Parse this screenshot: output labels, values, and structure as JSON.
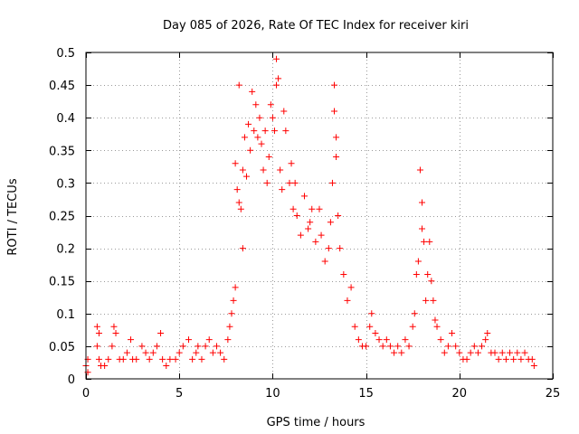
{
  "chart_data": {
    "type": "scatter",
    "title": "Day 085 of 2026, Rate Of TEC Index for receiver kiri",
    "xlabel": "GPS time / hours",
    "ylabel": "ROTI / TECUs",
    "xlim": [
      0,
      25
    ],
    "ylim": [
      0,
      0.5
    ],
    "xticks": [
      "0",
      "5",
      "10",
      "15",
      "20",
      "25"
    ],
    "yticks": [
      "0",
      "0.05",
      "0.1",
      "0.15",
      "0.2",
      "0.25",
      "0.3",
      "0.35",
      "0.4",
      "0.45",
      "0.5"
    ],
    "grid": true,
    "marker": "+",
    "marker_color": "#ff0000",
    "series": [
      {
        "points": [
          [
            0.0,
            0.02
          ],
          [
            0.1,
            0.03
          ],
          [
            0.1,
            0.01
          ],
          [
            0.6,
            0.08
          ],
          [
            0.6,
            0.05
          ],
          [
            0.7,
            0.07
          ],
          [
            0.7,
            0.03
          ],
          [
            0.8,
            0.02
          ],
          [
            1.0,
            0.02
          ],
          [
            1.2,
            0.03
          ],
          [
            1.4,
            0.05
          ],
          [
            1.5,
            0.08
          ],
          [
            1.6,
            0.07
          ],
          [
            1.8,
            0.03
          ],
          [
            2.0,
            0.03
          ],
          [
            2.2,
            0.04
          ],
          [
            2.4,
            0.06
          ],
          [
            2.5,
            0.03
          ],
          [
            2.7,
            0.03
          ],
          [
            3.0,
            0.05
          ],
          [
            3.2,
            0.04
          ],
          [
            3.4,
            0.03
          ],
          [
            3.6,
            0.04
          ],
          [
            3.8,
            0.05
          ],
          [
            4.0,
            0.07
          ],
          [
            4.1,
            0.03
          ],
          [
            4.3,
            0.02
          ],
          [
            4.5,
            0.03
          ],
          [
            4.8,
            0.03
          ],
          [
            5.0,
            0.04
          ],
          [
            5.2,
            0.05
          ],
          [
            5.5,
            0.06
          ],
          [
            5.7,
            0.03
          ],
          [
            5.9,
            0.04
          ],
          [
            6.0,
            0.05
          ],
          [
            6.2,
            0.03
          ],
          [
            6.4,
            0.05
          ],
          [
            6.6,
            0.06
          ],
          [
            6.8,
            0.04
          ],
          [
            7.0,
            0.05
          ],
          [
            7.2,
            0.04
          ],
          [
            7.4,
            0.03
          ],
          [
            7.6,
            0.06
          ],
          [
            7.7,
            0.08
          ],
          [
            7.8,
            0.1
          ],
          [
            7.9,
            0.12
          ],
          [
            8.0,
            0.14
          ],
          [
            8.0,
            0.33
          ],
          [
            8.1,
            0.29
          ],
          [
            8.2,
            0.45
          ],
          [
            8.2,
            0.27
          ],
          [
            8.3,
            0.26
          ],
          [
            8.4,
            0.2
          ],
          [
            8.4,
            0.32
          ],
          [
            8.5,
            0.37
          ],
          [
            8.6,
            0.31
          ],
          [
            8.7,
            0.39
          ],
          [
            8.8,
            0.35
          ],
          [
            8.9,
            0.44
          ],
          [
            9.0,
            0.38
          ],
          [
            9.1,
            0.42
          ],
          [
            9.2,
            0.37
          ],
          [
            9.3,
            0.4
          ],
          [
            9.4,
            0.36
          ],
          [
            9.5,
            0.32
          ],
          [
            9.6,
            0.38
          ],
          [
            9.7,
            0.3
          ],
          [
            9.8,
            0.34
          ],
          [
            9.9,
            0.42
          ],
          [
            10.0,
            0.4
          ],
          [
            10.1,
            0.38
          ],
          [
            10.2,
            0.45
          ],
          [
            10.2,
            0.49
          ],
          [
            10.3,
            0.46
          ],
          [
            10.4,
            0.32
          ],
          [
            10.5,
            0.29
          ],
          [
            10.6,
            0.41
          ],
          [
            10.7,
            0.38
          ],
          [
            10.9,
            0.3
          ],
          [
            11.0,
            0.33
          ],
          [
            11.1,
            0.26
          ],
          [
            11.2,
            0.3
          ],
          [
            11.3,
            0.25
          ],
          [
            11.5,
            0.22
          ],
          [
            11.7,
            0.28
          ],
          [
            11.9,
            0.23
          ],
          [
            12.0,
            0.24
          ],
          [
            12.1,
            0.26
          ],
          [
            12.3,
            0.21
          ],
          [
            12.5,
            0.26
          ],
          [
            12.6,
            0.22
          ],
          [
            12.8,
            0.18
          ],
          [
            13.0,
            0.2
          ],
          [
            13.1,
            0.24
          ],
          [
            13.2,
            0.3
          ],
          [
            13.3,
            0.45
          ],
          [
            13.3,
            0.41
          ],
          [
            13.4,
            0.37
          ],
          [
            13.4,
            0.34
          ],
          [
            13.5,
            0.25
          ],
          [
            13.6,
            0.2
          ],
          [
            13.8,
            0.16
          ],
          [
            14.0,
            0.12
          ],
          [
            14.2,
            0.14
          ],
          [
            14.4,
            0.08
          ],
          [
            14.6,
            0.06
          ],
          [
            14.8,
            0.05
          ],
          [
            15.0,
            0.05
          ],
          [
            15.2,
            0.08
          ],
          [
            15.3,
            0.1
          ],
          [
            15.5,
            0.07
          ],
          [
            15.7,
            0.06
          ],
          [
            15.9,
            0.05
          ],
          [
            16.1,
            0.06
          ],
          [
            16.3,
            0.05
          ],
          [
            16.5,
            0.04
          ],
          [
            16.7,
            0.05
          ],
          [
            16.9,
            0.04
          ],
          [
            17.1,
            0.06
          ],
          [
            17.3,
            0.05
          ],
          [
            17.5,
            0.08
          ],
          [
            17.6,
            0.1
          ],
          [
            17.7,
            0.16
          ],
          [
            17.8,
            0.18
          ],
          [
            17.9,
            0.32
          ],
          [
            18.0,
            0.27
          ],
          [
            18.0,
            0.23
          ],
          [
            18.1,
            0.21
          ],
          [
            18.2,
            0.12
          ],
          [
            18.3,
            0.16
          ],
          [
            18.4,
            0.21
          ],
          [
            18.5,
            0.15
          ],
          [
            18.6,
            0.12
          ],
          [
            18.7,
            0.09
          ],
          [
            18.8,
            0.08
          ],
          [
            19.0,
            0.06
          ],
          [
            19.2,
            0.04
          ],
          [
            19.4,
            0.05
          ],
          [
            19.6,
            0.07
          ],
          [
            19.8,
            0.05
          ],
          [
            20.0,
            0.04
          ],
          [
            20.2,
            0.03
          ],
          [
            20.4,
            0.03
          ],
          [
            20.6,
            0.04
          ],
          [
            20.8,
            0.05
          ],
          [
            21.0,
            0.04
          ],
          [
            21.2,
            0.05
          ],
          [
            21.4,
            0.06
          ],
          [
            21.5,
            0.07
          ],
          [
            21.7,
            0.04
          ],
          [
            21.9,
            0.04
          ],
          [
            22.1,
            0.03
          ],
          [
            22.3,
            0.04
          ],
          [
            22.5,
            0.03
          ],
          [
            22.7,
            0.04
          ],
          [
            22.9,
            0.03
          ],
          [
            23.1,
            0.04
          ],
          [
            23.3,
            0.03
          ],
          [
            23.5,
            0.04
          ],
          [
            23.7,
            0.03
          ],
          [
            23.9,
            0.03
          ],
          [
            24.0,
            0.02
          ]
        ]
      }
    ]
  }
}
